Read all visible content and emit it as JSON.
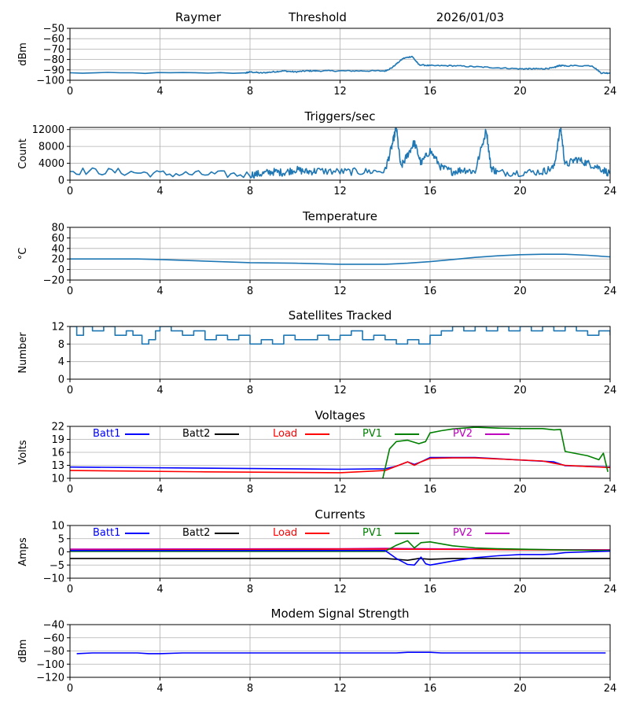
{
  "header": {
    "station": "Raymer",
    "mode": "Threshold",
    "date": "2026/01/03"
  },
  "chart_data": [
    {
      "id": "signal",
      "type": "line",
      "title": "",
      "xlabel": "",
      "ylabel": "dBm",
      "xlim": [
        0,
        24
      ],
      "ylim": [
        -100,
        -50
      ],
      "xticks": [
        0,
        4,
        8,
        12,
        16,
        20,
        24
      ],
      "yticks": [
        -100,
        -90,
        -80,
        -70,
        -60,
        -50
      ],
      "ytick_labels": [
        "−100",
        "−90",
        "−80",
        "−70",
        "−60",
        "−50"
      ],
      "grid": true,
      "series": [
        {
          "name": "signal",
          "color": "#1f77b4",
          "noise": 0.6,
          "x": [
            0,
            7.8,
            8,
            8.5,
            9,
            9.5,
            10,
            10.5,
            11,
            12,
            13,
            14,
            14.3,
            14.8,
            15.2,
            15.5,
            16,
            17,
            18,
            19,
            20,
            20.5,
            21,
            21.5,
            21.7,
            22,
            23.2,
            23.6,
            24
          ],
          "y": [
            -93,
            -93,
            -92,
            -93,
            -92,
            -91,
            -92,
            -91,
            -91,
            -91,
            -91,
            -91,
            -88,
            -79,
            -77,
            -85,
            -86,
            -86,
            -87,
            -88,
            -89,
            -89,
            -89,
            -88,
            -86,
            -86,
            -86,
            -93,
            -93
          ]
        }
      ]
    },
    {
      "id": "triggers",
      "type": "line",
      "title": "Triggers/sec",
      "xlabel": "",
      "ylabel": "Count",
      "xlim": [
        0,
        24
      ],
      "ylim": [
        0,
        12500
      ],
      "xticks": [
        0,
        4,
        8,
        12,
        16,
        20,
        24
      ],
      "yticks": [
        0,
        4000,
        8000,
        12000
      ],
      "ytick_labels": [
        "0",
        "4000",
        "8000",
        "12000"
      ],
      "grid": true,
      "series": [
        {
          "name": "triggers",
          "color": "#1f77b4",
          "noise": 900,
          "x": [
            0,
            2,
            4,
            6,
            8,
            8.5,
            9,
            9.5,
            10,
            10.5,
            11,
            12,
            13,
            14,
            14.3,
            14.5,
            14.7,
            15,
            15.3,
            15.6,
            16,
            16.5,
            17,
            17.5,
            18,
            18.5,
            18.7,
            19,
            20,
            21,
            21.5,
            21.8,
            22,
            22.5,
            23,
            23.5,
            24
          ],
          "y": [
            2200,
            2000,
            1500,
            1400,
            1300,
            1500,
            2000,
            1800,
            2500,
            2000,
            2200,
            2000,
            2000,
            2200,
            8000,
            12500,
            3000,
            6000,
            9000,
            4000,
            7000,
            3000,
            2000,
            2500,
            2000,
            12000,
            3000,
            1800,
            1800,
            2000,
            3000,
            12500,
            3500,
            5000,
            4000,
            3000,
            1500
          ]
        }
      ]
    },
    {
      "id": "temperature",
      "type": "line",
      "title": "Temperature",
      "xlabel": "",
      "ylabel": "°C",
      "xlim": [
        0,
        24
      ],
      "ylim": [
        -20,
        80
      ],
      "xticks": [
        0,
        4,
        8,
        12,
        16,
        20,
        24
      ],
      "yticks": [
        -20,
        0,
        20,
        40,
        60,
        80
      ],
      "ytick_labels": [
        "−20",
        "0",
        "20",
        "40",
        "60",
        "80"
      ],
      "grid": true,
      "series": [
        {
          "name": "temperature",
          "color": "#1f77b4",
          "noise": 0,
          "x": [
            0,
            1,
            3,
            4,
            6,
            8,
            10,
            12,
            14,
            15,
            16,
            17,
            18,
            19,
            20,
            21,
            22,
            23,
            24
          ],
          "y": [
            20,
            20,
            20,
            19,
            16,
            13,
            12,
            10,
            10,
            12,
            15,
            19,
            23,
            26,
            28,
            29,
            29,
            27,
            24
          ]
        }
      ]
    },
    {
      "id": "satellites",
      "type": "line",
      "title": "Satellites Tracked",
      "xlabel": "",
      "ylabel": "Number",
      "xlim": [
        0,
        24
      ],
      "ylim": [
        0,
        12
      ],
      "xticks": [
        0,
        4,
        8,
        12,
        16,
        20,
        24
      ],
      "yticks": [
        0,
        4,
        8,
        12
      ],
      "ytick_labels": [
        "0",
        "4",
        "8",
        "12"
      ],
      "grid": true,
      "steps": true,
      "series": [
        {
          "name": "satellites",
          "color": "#1f77b4",
          "noise": 0,
          "x": [
            0,
            0.3,
            0.6,
            1,
            1.5,
            2,
            2.5,
            2.8,
            3.2,
            3.5,
            3.8,
            4,
            4.5,
            5,
            5.5,
            6,
            6.5,
            7,
            7.5,
            8,
            8.5,
            9,
            9.5,
            10,
            11,
            11.5,
            12,
            12.5,
            13,
            13.5,
            14,
            14.5,
            15,
            15.5,
            16,
            16.5,
            17,
            17.5,
            18,
            18.5,
            19,
            19.5,
            20,
            20.5,
            21,
            21.5,
            22,
            22.5,
            23,
            23.5,
            24
          ],
          "y": [
            12,
            10,
            12,
            11,
            12,
            10,
            11,
            10,
            8,
            9,
            11,
            12,
            11,
            10,
            11,
            9,
            10,
            9,
            10,
            8,
            9,
            8,
            10,
            9,
            10,
            9,
            10,
            11,
            9,
            10,
            9,
            8,
            9,
            8,
            10,
            11,
            12,
            11,
            12,
            11,
            12,
            11,
            12,
            11,
            12,
            11,
            12,
            11,
            10,
            11,
            10
          ]
        }
      ]
    },
    {
      "id": "voltages",
      "type": "line",
      "title": "Voltages",
      "xlabel": "",
      "ylabel": "Volts",
      "xlim": [
        0,
        24
      ],
      "ylim": [
        10,
        22
      ],
      "xticks": [
        0,
        4,
        8,
        12,
        16,
        20,
        24
      ],
      "yticks": [
        10,
        13,
        16,
        19,
        22
      ],
      "ytick_labels": [
        "10",
        "13",
        "16",
        "19",
        "22"
      ],
      "grid": true,
      "legend": [
        "Batt1",
        "Batt2",
        "Load",
        "PV1",
        "PV2"
      ],
      "series": [
        {
          "name": "Batt1",
          "color": "#0000ff",
          "noise": 0,
          "x": [
            0,
            12,
            14,
            14.5,
            15,
            15.3,
            15.6,
            16,
            18,
            21.5,
            22,
            24
          ],
          "y": [
            12.6,
            12.1,
            12.2,
            12.8,
            13.8,
            13.2,
            13.8,
            14.8,
            14.8,
            13.8,
            12.9,
            12.6
          ]
        },
        {
          "name": "Load",
          "color": "#ff0000",
          "noise": 0,
          "x": [
            0,
            6,
            12,
            14,
            14.5,
            15,
            15.3,
            15.6,
            16,
            17,
            18,
            21,
            21.5,
            22,
            23,
            24
          ],
          "y": [
            11.8,
            11.5,
            11.3,
            11.8,
            12.8,
            13.8,
            13.0,
            13.8,
            14.6,
            14.7,
            14.7,
            14.0,
            13.5,
            13.0,
            12.7,
            12.5
          ]
        },
        {
          "name": "PV1",
          "color": "#008000",
          "noise": 0,
          "x": [
            13.9,
            14.2,
            14.5,
            15,
            15.5,
            15.8,
            16,
            16.5,
            17,
            18,
            19,
            20,
            21,
            21.5,
            21.8,
            22,
            23,
            23.5,
            23.7,
            23.9
          ],
          "y": [
            10,
            16.8,
            18.5,
            18.8,
            18.0,
            18.5,
            20.5,
            21.0,
            21.4,
            21.8,
            21.6,
            21.5,
            21.5,
            21.2,
            21.3,
            16.2,
            15.2,
            14.3,
            15.8,
            11.5
          ]
        },
        {
          "name": "PV2",
          "color": "#bf00bf",
          "noise": 0,
          "x": [],
          "y": []
        },
        {
          "name": "Batt2",
          "color": "#000000",
          "noise": 0,
          "x": [],
          "y": []
        }
      ]
    },
    {
      "id": "currents",
      "type": "line",
      "title": "Currents",
      "xlabel": "",
      "ylabel": "Amps",
      "xlim": [
        0,
        24
      ],
      "ylim": [
        -10,
        10
      ],
      "xticks": [
        0,
        4,
        8,
        12,
        16,
        20,
        24
      ],
      "yticks": [
        -10,
        -5,
        0,
        5,
        10
      ],
      "ytick_labels": [
        "−10",
        "−5",
        "0",
        "5",
        "10"
      ],
      "grid": true,
      "legend": [
        "Batt1",
        "Batt2",
        "Load",
        "PV1",
        "PV2"
      ],
      "series": [
        {
          "name": "Batt2",
          "color": "#000000",
          "noise": 0,
          "x": [
            0,
            14,
            14.5,
            15,
            15.5,
            16,
            17,
            24
          ],
          "y": [
            -2.5,
            -2.5,
            -2.8,
            -3.2,
            -2.5,
            -2.8,
            -2.5,
            -2.5
          ]
        },
        {
          "name": "PV2",
          "color": "#bf00bf",
          "noise": 0,
          "x": [
            0,
            6,
            12,
            14,
            18,
            22,
            24
          ],
          "y": [
            1.0,
            1.1,
            1.2,
            1.3,
            1.0,
            0.8,
            0.8
          ]
        },
        {
          "name": "Load",
          "color": "#ff0000",
          "noise": 0,
          "x": [
            0,
            6,
            12,
            14,
            18,
            22,
            24
          ],
          "y": [
            0.6,
            0.8,
            1.0,
            1.0,
            0.9,
            0.7,
            0.6
          ]
        },
        {
          "name": "PV1",
          "color": "#008000",
          "noise": 0,
          "x": [
            0,
            14,
            14.5,
            15,
            15.3,
            15.6,
            16,
            17,
            18,
            19,
            20,
            22,
            24
          ],
          "y": [
            0.2,
            0.2,
            2.5,
            4.2,
            1.5,
            3.5,
            3.8,
            2.3,
            1.5,
            1.2,
            1.0,
            0.7,
            0.5
          ]
        },
        {
          "name": "Batt1",
          "color": "#0000ff",
          "noise": 0,
          "x": [
            0,
            14,
            14.5,
            15,
            15.3,
            15.6,
            15.8,
            16,
            17,
            18,
            19,
            20,
            21,
            21.5,
            22,
            23,
            24
          ],
          "y": [
            0.5,
            0.5,
            -2.5,
            -4.8,
            -5.0,
            -2.0,
            -4.5,
            -5.0,
            -3.5,
            -2.2,
            -1.5,
            -1.0,
            -1.0,
            -0.8,
            -0.3,
            0.0,
            0.3
          ]
        }
      ]
    },
    {
      "id": "modem",
      "type": "line",
      "title": "Modem Signal Strength",
      "xlabel": "",
      "ylabel": "dBm",
      "xlim": [
        0,
        24
      ],
      "ylim": [
        -120,
        -40
      ],
      "xticks": [
        0,
        4,
        8,
        12,
        16,
        20,
        24
      ],
      "yticks": [
        -120,
        -100,
        -80,
        -60,
        -40
      ],
      "ytick_labels": [
        "−120",
        "−100",
        "−80",
        "−60",
        "−40"
      ],
      "grid": true,
      "series": [
        {
          "name": "modem",
          "color": "#0000ff",
          "noise": 0,
          "x": [
            0.3,
            1,
            2,
            3,
            3.5,
            4,
            5,
            6,
            8,
            10,
            12,
            14,
            14.5,
            15,
            16,
            16.5,
            18,
            20,
            22,
            23.8
          ],
          "y": [
            -84,
            -83,
            -83,
            -83,
            -84,
            -84,
            -83,
            -83,
            -83,
            -83,
            -83,
            -83,
            -83,
            -82,
            -82,
            -83,
            -83,
            -83,
            -83,
            -83
          ]
        }
      ]
    }
  ]
}
